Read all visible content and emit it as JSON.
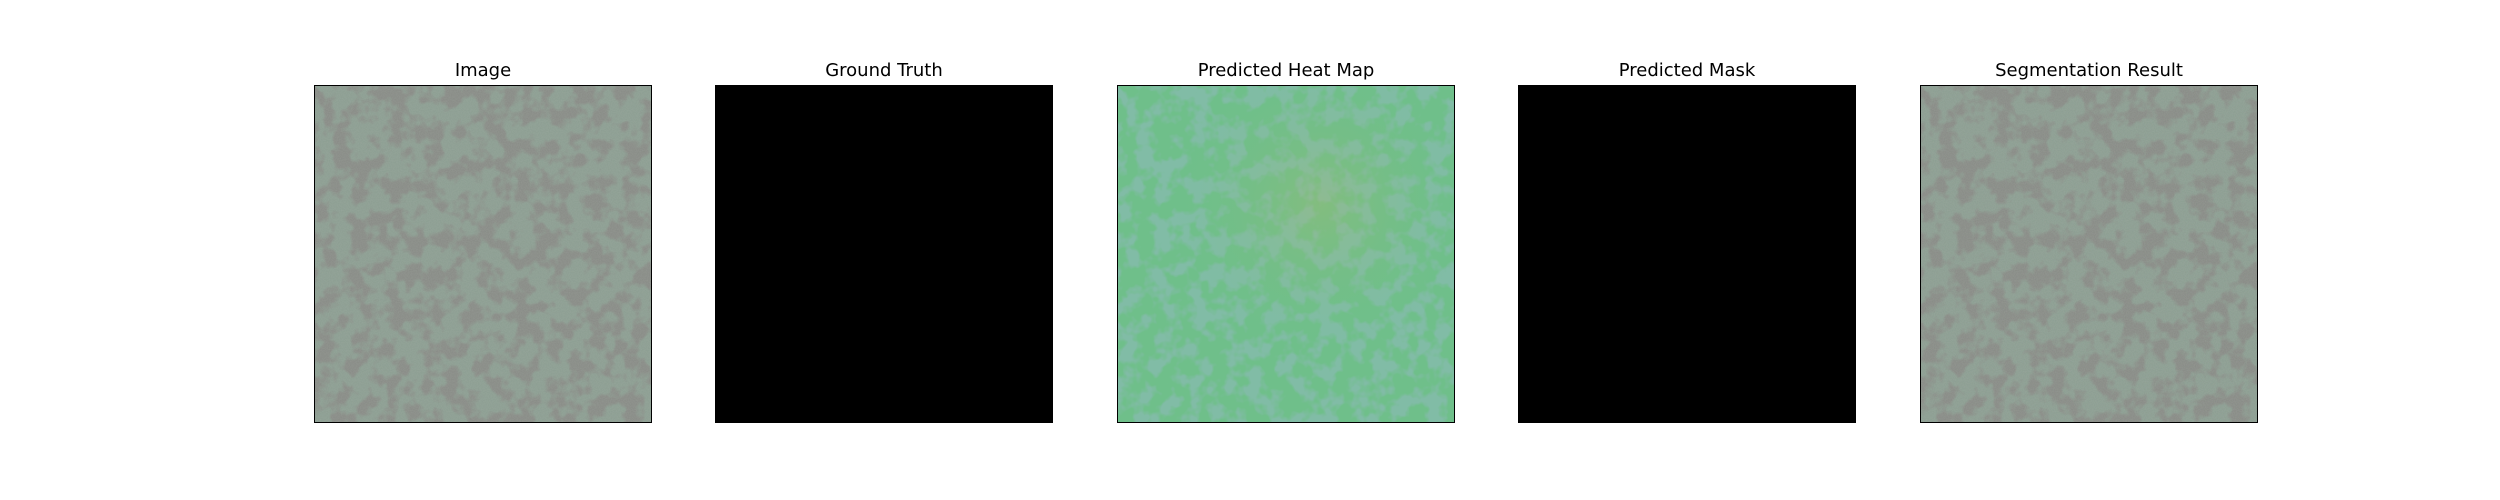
{
  "figure": {
    "panels": [
      {
        "title": "Image",
        "fill": "texture"
      },
      {
        "title": "Ground Truth",
        "fill": "black"
      },
      {
        "title": "Predicted Heat Map",
        "fill": "heatmap"
      },
      {
        "title": "Predicted Mask",
        "fill": "black"
      },
      {
        "title": "Segmentation Result",
        "fill": "texture"
      }
    ]
  },
  "colors": {
    "background": "#ffffff",
    "frame": "#000000",
    "texture_light": "#8a9c90",
    "texture_dark": "#3d403b",
    "heatmap_light": "#6fbf8a",
    "heatmap_dark": "#3f8a63",
    "mask": "#000000"
  },
  "icons": {}
}
